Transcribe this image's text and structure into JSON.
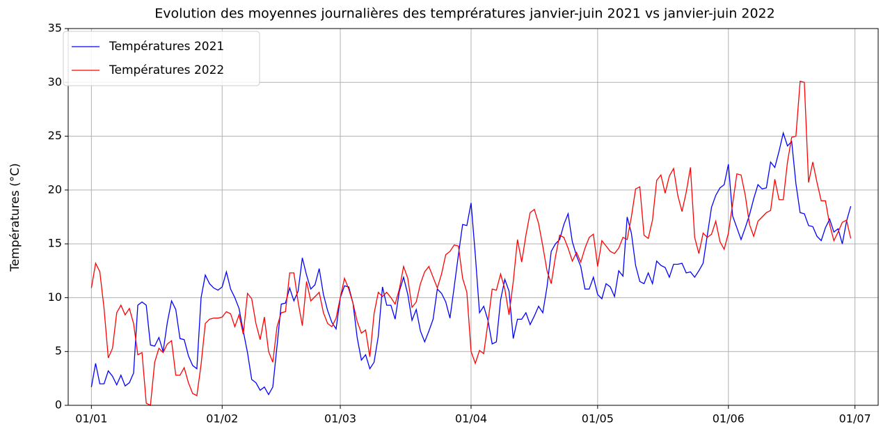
{
  "chart_data": {
    "type": "line",
    "title": "Evolution des moyennes journalières des temprératures janvier-juin 2021 vs janvier-juin 2022",
    "y_label": "Températures (°C)",
    "x": [
      0,
      1,
      2,
      3,
      4,
      5,
      6,
      7,
      8,
      9,
      10,
      11,
      12,
      13,
      14,
      15,
      16,
      17,
      18,
      19,
      20,
      21,
      22,
      23,
      24,
      25,
      26,
      27,
      28,
      29,
      30,
      31,
      32,
      33,
      34,
      35,
      36,
      37,
      38,
      39,
      40,
      41,
      42,
      43,
      44,
      45,
      46,
      47,
      48,
      49,
      50,
      51,
      52,
      53,
      54,
      55,
      56,
      57,
      58,
      59,
      60,
      61,
      62,
      63,
      64,
      65,
      66,
      67,
      68,
      69,
      70,
      71,
      72,
      73,
      74,
      75,
      76,
      77,
      78,
      79,
      80,
      81,
      82,
      83,
      84,
      85,
      86,
      87,
      88,
      89,
      90,
      91,
      92,
      93,
      94,
      95,
      96,
      97,
      98,
      99,
      100,
      101,
      102,
      103,
      104,
      105,
      106,
      107,
      108,
      109,
      110,
      111,
      112,
      113,
      114,
      115,
      116,
      117,
      118,
      119,
      120,
      121,
      122,
      123,
      124,
      125,
      126,
      127,
      128,
      129,
      130,
      131,
      132,
      133,
      134,
      135,
      136,
      137,
      138,
      139,
      140,
      141,
      142,
      143,
      144,
      145,
      146,
      147,
      148,
      149,
      150,
      151,
      152,
      153,
      154,
      155,
      156,
      157,
      158,
      159,
      160,
      161,
      162,
      163,
      164,
      165,
      166,
      167,
      168,
      169,
      170,
      171,
      172,
      173,
      174,
      175,
      176,
      177,
      178,
      179,
      180
    ],
    "series": [
      {
        "name": "Températures 2021",
        "color": "#0000ff",
        "values": [
          1.7,
          3.9,
          2.0,
          2.0,
          3.2,
          2.7,
          1.9,
          2.8,
          1.8,
          2.1,
          3.0,
          9.3,
          9.6,
          9.3,
          5.6,
          5.5,
          6.3,
          5.0,
          7.7,
          9.7,
          8.9,
          6.2,
          6.1,
          4.6,
          3.7,
          3.4,
          10.0,
          12.1,
          11.3,
          10.9,
          10.7,
          11.0,
          12.4,
          10.8,
          10.0,
          9.0,
          6.9,
          4.9,
          2.4,
          2.1,
          1.4,
          1.7,
          1.0,
          1.7,
          5.5,
          9.4,
          9.5,
          10.9,
          9.7,
          10.6,
          13.7,
          12.1,
          10.8,
          11.2,
          12.7,
          10.3,
          8.8,
          7.7,
          7.1,
          10.0,
          11.1,
          11.0,
          9.5,
          6.3,
          4.2,
          4.7,
          3.4,
          4.0,
          6.4,
          11.0,
          9.3,
          9.3,
          8.0,
          10.6,
          11.9,
          10.3,
          7.9,
          8.9,
          6.9,
          5.9,
          6.9,
          8.0,
          10.8,
          10.4,
          9.6,
          8.1,
          11.0,
          14.0,
          16.8,
          16.7,
          18.8,
          14.0,
          8.6,
          9.2,
          7.9,
          5.7,
          5.9,
          9.8,
          11.7,
          10.6,
          6.2,
          8.0,
          8.0,
          8.6,
          7.5,
          8.3,
          9.2,
          8.6,
          11.0,
          14.3,
          15.0,
          15.4,
          16.8,
          17.8,
          15.2,
          13.9,
          12.9,
          10.8,
          10.8,
          11.9,
          10.3,
          9.9,
          11.3,
          11.0,
          10.1,
          12.5,
          12.0,
          17.5,
          16.0,
          13.0,
          11.5,
          11.3,
          12.3,
          11.3,
          13.4,
          13.0,
          12.8,
          11.9,
          13.1,
          13.1,
          13.2,
          12.3,
          12.4,
          11.9,
          12.5,
          13.2,
          15.8,
          18.4,
          19.5,
          20.2,
          20.5,
          22.4,
          17.6,
          16.5,
          15.4,
          16.5,
          17.7,
          19.2,
          20.5,
          20.1,
          20.2,
          22.6,
          22.1,
          23.6,
          25.3,
          24.1,
          24.5,
          20.6,
          17.9,
          17.8,
          16.7,
          16.6,
          15.7,
          15.3,
          16.5,
          17.3,
          16.1,
          16.4,
          15.0,
          17.1,
          18.5
        ]
      },
      {
        "name": "Températures 2022",
        "color": "#ff0000",
        "values": [
          10.9,
          13.2,
          12.4,
          9.0,
          4.4,
          5.3,
          8.6,
          9.3,
          8.4,
          9.0,
          7.6,
          4.7,
          4.9,
          0.2,
          0.0,
          4.0,
          5.3,
          4.9,
          5.7,
          6.0,
          2.8,
          2.8,
          3.5,
          2.1,
          1.1,
          0.9,
          3.8,
          7.6,
          8.0,
          8.1,
          8.1,
          8.2,
          8.7,
          8.5,
          7.3,
          8.4,
          6.6,
          10.4,
          9.9,
          7.6,
          6.1,
          8.2,
          5.0,
          4.0,
          7.3,
          8.6,
          8.7,
          12.3,
          12.3,
          9.6,
          7.4,
          11.5,
          9.7,
          10.1,
          10.5,
          8.6,
          7.6,
          7.3,
          8.1,
          10.0,
          11.8,
          10.8,
          9.5,
          7.8,
          6.7,
          7.0,
          4.5,
          8.5,
          10.5,
          10.1,
          10.5,
          10.0,
          9.4,
          10.8,
          12.9,
          11.8,
          9.1,
          9.6,
          11.3,
          12.4,
          12.9,
          11.9,
          10.9,
          12.2,
          14.0,
          14.3,
          14.9,
          14.8,
          11.8,
          10.5,
          5.0,
          3.9,
          5.1,
          4.8,
          7.7,
          10.8,
          10.7,
          12.2,
          10.8,
          8.4,
          11.5,
          15.4,
          13.3,
          15.8,
          17.9,
          18.2,
          16.9,
          14.8,
          12.5,
          11.3,
          13.8,
          15.8,
          15.6,
          14.6,
          13.4,
          14.2,
          13.3,
          14.6,
          15.6,
          15.9,
          12.9,
          15.3,
          14.8,
          14.3,
          14.1,
          14.6,
          15.6,
          15.4,
          17.5,
          20.1,
          20.3,
          15.8,
          15.5,
          17.2,
          20.9,
          21.4,
          19.7,
          21.3,
          22.0,
          19.5,
          18.0,
          19.8,
          22.1,
          15.6,
          14.1,
          16.0,
          15.6,
          15.9,
          17.1,
          15.2,
          14.5,
          16.0,
          18.7,
          21.5,
          21.4,
          19.5,
          16.8,
          15.7,
          17.1,
          17.5,
          17.9,
          18.1,
          21.0,
          19.1,
          19.1,
          22.6,
          24.9,
          25.0,
          30.1,
          30.0,
          20.7,
          22.6,
          20.7,
          19.0,
          19.0,
          16.8,
          15.3,
          16.1,
          17.0,
          17.2,
          15.5
        ]
      }
    ],
    "xlim": [
      -5.5,
      186.5
    ],
    "xticks": [
      {
        "value": 0,
        "label": "01/01"
      },
      {
        "value": 31,
        "label": "01/02"
      },
      {
        "value": 59,
        "label": "01/03"
      },
      {
        "value": 90,
        "label": "01/04"
      },
      {
        "value": 120,
        "label": "01/05"
      },
      {
        "value": 151,
        "label": "01/06"
      },
      {
        "value": 181,
        "label": "01/07"
      }
    ],
    "ylim": [
      0,
      35
    ],
    "yticks": [
      0,
      5,
      10,
      15,
      20,
      25,
      30,
      35
    ],
    "grid": true,
    "legend": "upper-left"
  }
}
